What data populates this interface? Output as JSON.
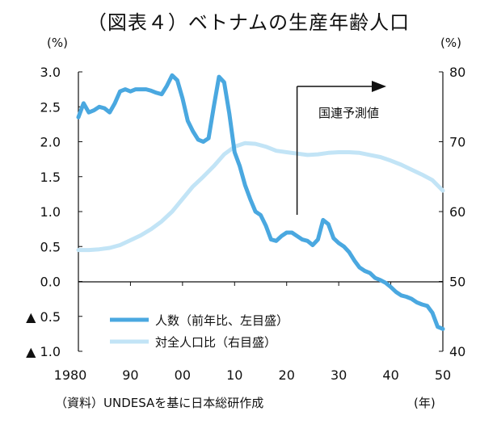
{
  "title": "（図表４）ベトナムの生産年齢人口",
  "left_unit": "(%)",
  "right_unit": "(%)",
  "source": "（資料）UNDESAを基に日本総研作成",
  "x_unit": "(年)",
  "annotation": "国連予測値",
  "chart_data": {
    "type": "line",
    "title": "（図表４）ベトナムの生産年齢人口",
    "x_tick_labels": [
      "1980",
      "90",
      "00",
      "10",
      "20",
      "30",
      "40",
      "50"
    ],
    "x_tick_years": [
      1980,
      1990,
      2000,
      2010,
      2020,
      2030,
      2040,
      2050
    ],
    "xlim": [
      1980,
      2050
    ],
    "y_left_tick_labels": [
      "3.0",
      "2.5",
      "2.0",
      "1.5",
      "1.0",
      "0.5",
      "0.0",
      "▲ 0.5",
      "▲ 1.0"
    ],
    "y_left_tick_values": [
      3.0,
      2.5,
      2.0,
      1.5,
      1.0,
      0.5,
      0.0,
      -0.5,
      -1.0
    ],
    "y_left_lim": [
      -1.0,
      3.0
    ],
    "y_right_tick_labels": [
      "80",
      "70",
      "60",
      "50",
      "40"
    ],
    "y_right_tick_values": [
      80,
      70,
      60,
      50,
      40
    ],
    "y_right_lim": [
      40,
      80
    ],
    "legend_position": "bottom-left",
    "forecast_start_year": 2022,
    "series": [
      {
        "name": "人数（前年比、左目盛）",
        "axis": "left",
        "color": "#4aa8e0",
        "x": [
          1980,
          1981,
          1982,
          1983,
          1984,
          1985,
          1986,
          1987,
          1988,
          1989,
          1990,
          1991,
          1992,
          1993,
          1994,
          1995,
          1996,
          1997,
          1998,
          1999,
          2000,
          2001,
          2002,
          2003,
          2004,
          2005,
          2006,
          2007,
          2008,
          2009,
          2010,
          2011,
          2012,
          2013,
          2014,
          2015,
          2016,
          2017,
          2018,
          2019,
          2020,
          2021,
          2022,
          2023,
          2024,
          2025,
          2026,
          2027,
          2028,
          2029,
          2030,
          2031,
          2032,
          2033,
          2034,
          2035,
          2036,
          2037,
          2038,
          2039,
          2040,
          2041,
          2042,
          2043,
          2044,
          2045,
          2046,
          2047,
          2048,
          2049,
          2050
        ],
        "values": [
          2.35,
          2.55,
          2.42,
          2.45,
          2.5,
          2.48,
          2.42,
          2.55,
          2.72,
          2.75,
          2.72,
          2.75,
          2.75,
          2.75,
          2.73,
          2.7,
          2.68,
          2.8,
          2.95,
          2.88,
          2.62,
          2.3,
          2.15,
          2.03,
          2.0,
          2.05,
          2.5,
          2.93,
          2.85,
          2.4,
          1.85,
          1.65,
          1.38,
          1.18,
          1.0,
          0.95,
          0.8,
          0.6,
          0.58,
          0.65,
          0.7,
          0.7,
          0.65,
          0.6,
          0.58,
          0.52,
          0.6,
          0.88,
          0.82,
          0.62,
          0.55,
          0.5,
          0.42,
          0.3,
          0.2,
          0.15,
          0.12,
          0.05,
          0.02,
          -0.02,
          -0.08,
          -0.15,
          -0.2,
          -0.22,
          -0.25,
          -0.3,
          -0.33,
          -0.35,
          -0.45,
          -0.65,
          -0.68
        ]
      },
      {
        "name": "対全人口比（右目盛）",
        "axis": "right",
        "color": "#c2e4f6",
        "x": [
          1980,
          1982,
          1984,
          1986,
          1988,
          1990,
          1992,
          1994,
          1996,
          1998,
          2000,
          2002,
          2004,
          2006,
          2008,
          2010,
          2012,
          2014,
          2016,
          2018,
          2020,
          2022,
          2024,
          2026,
          2028,
          2030,
          2032,
          2034,
          2036,
          2038,
          2040,
          2042,
          2044,
          2046,
          2048,
          2050
        ],
        "values": [
          54.5,
          54.5,
          54.6,
          54.8,
          55.2,
          55.9,
          56.6,
          57.5,
          58.6,
          60.0,
          61.8,
          63.6,
          65.0,
          66.5,
          68.2,
          69.3,
          69.8,
          69.7,
          69.3,
          68.7,
          68.5,
          68.3,
          68.1,
          68.2,
          68.4,
          68.5,
          68.5,
          68.4,
          68.1,
          67.8,
          67.3,
          66.7,
          66.0,
          65.3,
          64.5,
          63.0
        ]
      }
    ]
  }
}
